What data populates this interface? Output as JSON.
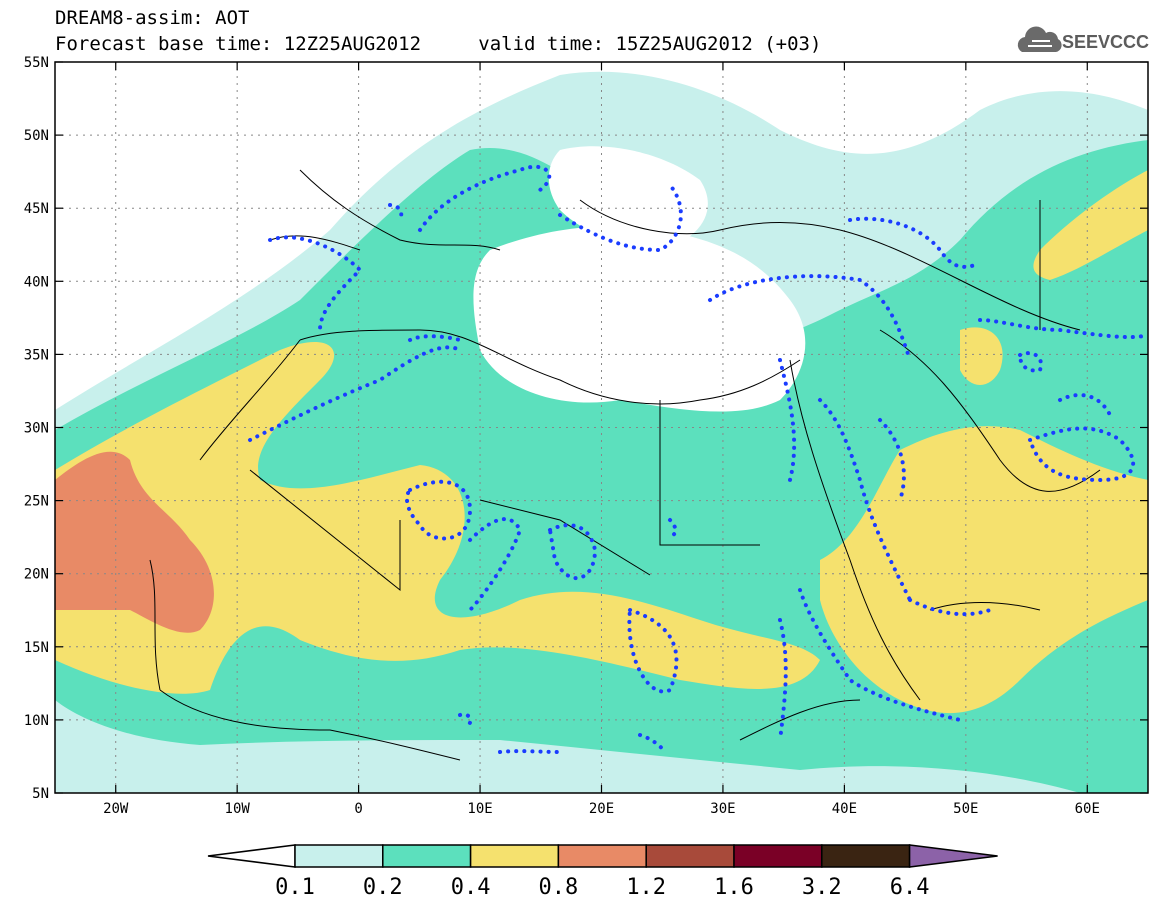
{
  "header": {
    "title": "DREAM8-assim: AOT",
    "base_time_label": "Forecast base time: 12Z25AUG2012",
    "valid_time_label": "valid time: 15Z25AUG2012 (+03)"
  },
  "logo": {
    "text": "SEEVCCC",
    "icon": "cloud-icon"
  },
  "map": {
    "lon_range": [
      -25,
      65
    ],
    "lat_range": [
      5,
      55
    ],
    "lat_ticks": [
      "55N",
      "50N",
      "45N",
      "40N",
      "35N",
      "30N",
      "25N",
      "20N",
      "15N",
      "10N",
      "5N"
    ],
    "lon_ticks": [
      "20W",
      "10W",
      "0",
      "10E",
      "20E",
      "30E",
      "40E",
      "50E",
      "60E"
    ],
    "overlay_line_color": "#1a3cff",
    "border_color": "#000000"
  },
  "colorbar": {
    "labels": [
      "0.1",
      "0.2",
      "0.4",
      "0.8",
      "1.2",
      "1.6",
      "3.2",
      "6.4"
    ],
    "colors": [
      "#ffffff",
      "#c8f0ec",
      "#5ce0bd",
      "#f5e16e",
      "#e88a66",
      "#a84a3a",
      "#7a0026",
      "#3a2412",
      "#8c62a8"
    ]
  },
  "colors": {
    "c01": "#c8f0ec",
    "c02": "#5ce0bd",
    "c04": "#f5e16e",
    "c08": "#e88a66"
  }
}
